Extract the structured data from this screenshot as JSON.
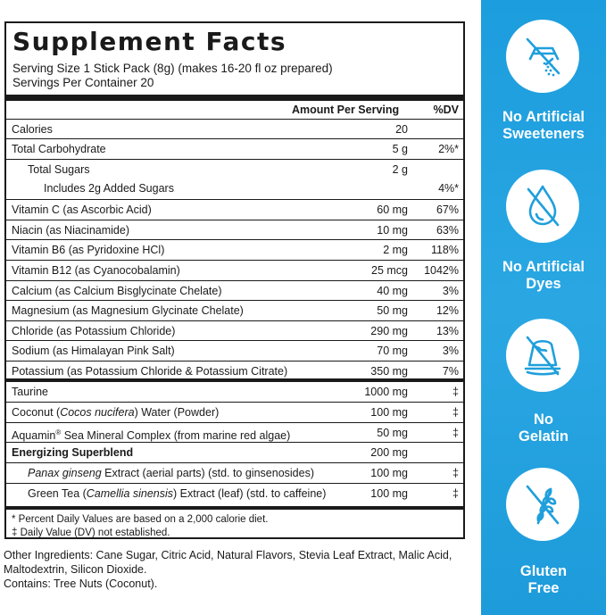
{
  "facts": {
    "title": "Supplement Facts",
    "serving_size": "Serving Size 1 Stick Pack (8g) (makes 16-20 fl oz prepared)",
    "servings_per_container": "Servings Per Container 20",
    "col_amount": "Amount Per Serving",
    "col_dv": "%DV",
    "rows": [
      {
        "name": "Calories",
        "amount": "20",
        "dv": ""
      },
      {
        "name": "Total Carbohydrate",
        "amount": "5 g",
        "dv": "2%*"
      },
      {
        "name": "Total Sugars",
        "amount": "2 g",
        "dv": ""
      },
      {
        "name": "Includes 2g Added Sugars",
        "amount": "",
        "dv": "4%*"
      },
      {
        "name": "Vitamin C (as Ascorbic Acid)",
        "amount": "60 mg",
        "dv": "67%"
      },
      {
        "name": "Niacin (as Niacinamide)",
        "amount": "10 mg",
        "dv": "63%"
      },
      {
        "name": "Vitamin B6 (as Pyridoxine HCl)",
        "amount": "2 mg",
        "dv": "118%"
      },
      {
        "name": "Vitamin B12 (as Cyanocobalamin)",
        "amount": "25 mcg",
        "dv": "1042%"
      },
      {
        "name": "Calcium (as Calcium Bisglycinate Chelate)",
        "amount": "40 mg",
        "dv": "3%"
      },
      {
        "name": "Magnesium (as Magnesium Glycinate Chelate)",
        "amount": "50 mg",
        "dv": "12%"
      },
      {
        "name": "Chloride (as Potassium Chloride)",
        "amount": "290 mg",
        "dv": "13%"
      },
      {
        "name": "Sodium (as Himalayan Pink Salt)",
        "amount": "70 mg",
        "dv": "3%"
      },
      {
        "name": "Potassium (as Potassium Chloride & Potassium Citrate)",
        "amount": "350 mg",
        "dv": "7%"
      }
    ],
    "other_rows": [
      {
        "name": "Taurine",
        "amount": "1000 mg",
        "dv": "‡"
      },
      {
        "name": "Coconut (Cocos nucifera) Water (Powder)",
        "amount": "100 mg",
        "dv": "‡"
      },
      {
        "name": "Aquamin® Sea Mineral Complex (from marine red algae)",
        "amount": "50 mg",
        "dv": "‡"
      },
      {
        "name": "Energizing Superblend",
        "amount": "200 mg",
        "dv": ""
      },
      {
        "name": "Panax ginseng Extract (aerial parts) (std. to ginsenosides)",
        "amount": "100 mg",
        "dv": "‡"
      },
      {
        "name": "Green Tea (Camellia sinensis) Extract (leaf) (std. to caffeine)",
        "amount": "100 mg",
        "dv": "‡"
      }
    ],
    "footnote_dv": "* Percent Daily Values are based on a 2,000 calorie diet.",
    "footnote_not_established": "‡ Daily Value (DV) not established."
  },
  "other_ingredients": "Other Ingredients: Cane Sugar, Citric Acid, Natural Flavors, Stevia Leaf Extract, Malic Acid, Maltodextrin, Silicon Dioxide.",
  "contains": "Contains: Tree Nuts (Coconut).",
  "badges": [
    {
      "icon": "no-sweetener-icon",
      "line1": "No Artificial",
      "line2": "Sweeteners"
    },
    {
      "icon": "no-dye-icon",
      "line1": "No Artificial",
      "line2": "Dyes"
    },
    {
      "icon": "no-gelatin-icon",
      "line1": "No",
      "line2": "Gelatin"
    },
    {
      "icon": "gluten-free-icon",
      "line1": "Gluten",
      "line2": "Free"
    }
  ],
  "colors": {
    "sidebar_blue": "#23a3e0",
    "text": "#1a1a1a",
    "icon_blue": "#1f9fdc"
  }
}
